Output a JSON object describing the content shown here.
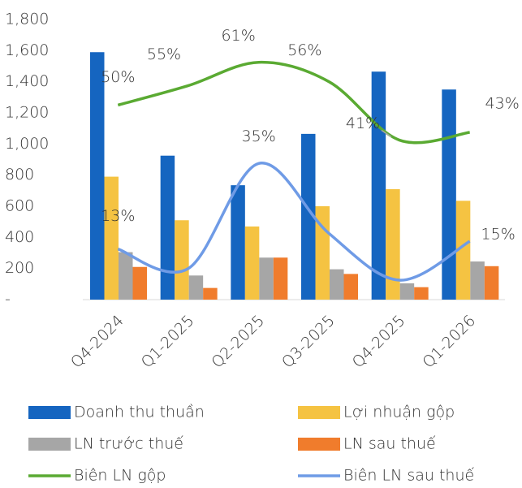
{
  "chart_data": {
    "type": "bar",
    "categories": [
      "Q4-2024",
      "Q1-2025",
      "Q2-2025",
      "Q3-2025",
      "Q4-2025",
      "Q1-2026"
    ],
    "ylim": [
      0,
      1800
    ],
    "yticks": [
      {
        "value": 0,
        "label": "-"
      },
      200,
      400,
      600,
      800,
      {
        "value": 1000,
        "label": "1,000"
      },
      {
        "value": 1200,
        "label": "1,200"
      },
      {
        "value": 1400,
        "label": "1,400"
      },
      {
        "value": 1600,
        "label": "1,600"
      },
      {
        "value": 1800,
        "label": "1,800"
      }
    ],
    "y2lim": [
      0,
      72
    ],
    "series": [
      {
        "name": "Doanh thu thuần",
        "color": "#1565c0",
        "values": [
          1590,
          925,
          735,
          1065,
          1465,
          1350
        ]
      },
      {
        "name": "Lợi nhuận gộp",
        "color": "#f5c342",
        "values": [
          790,
          510,
          470,
          600,
          710,
          635
        ]
      },
      {
        "name": "LN trước thuế",
        "color": "#a6a6a6",
        "values": [
          305,
          155,
          270,
          195,
          105,
          245
        ]
      },
      {
        "name": "LN sau thuế",
        "color": "#f07c2c",
        "values": [
          210,
          75,
          270,
          165,
          80,
          215
        ]
      },
      {
        "name": "Biên LN gộp",
        "color": "#5aaa32",
        "axis": "y2",
        "type": "line",
        "values": [
          50,
          55,
          61,
          56,
          41,
          43
        ],
        "value_labels": [
          "50%",
          "55%",
          "61%",
          "56%",
          "41%",
          "43%"
        ]
      },
      {
        "name": "Biên LN sau thuế",
        "color": "#6f9be6",
        "axis": "y2",
        "type": "line",
        "values": [
          13,
          8,
          35,
          17,
          5,
          15
        ],
        "value_labels": [
          "13%",
          null,
          "35%",
          null,
          null,
          "15%"
        ]
      }
    ]
  }
}
